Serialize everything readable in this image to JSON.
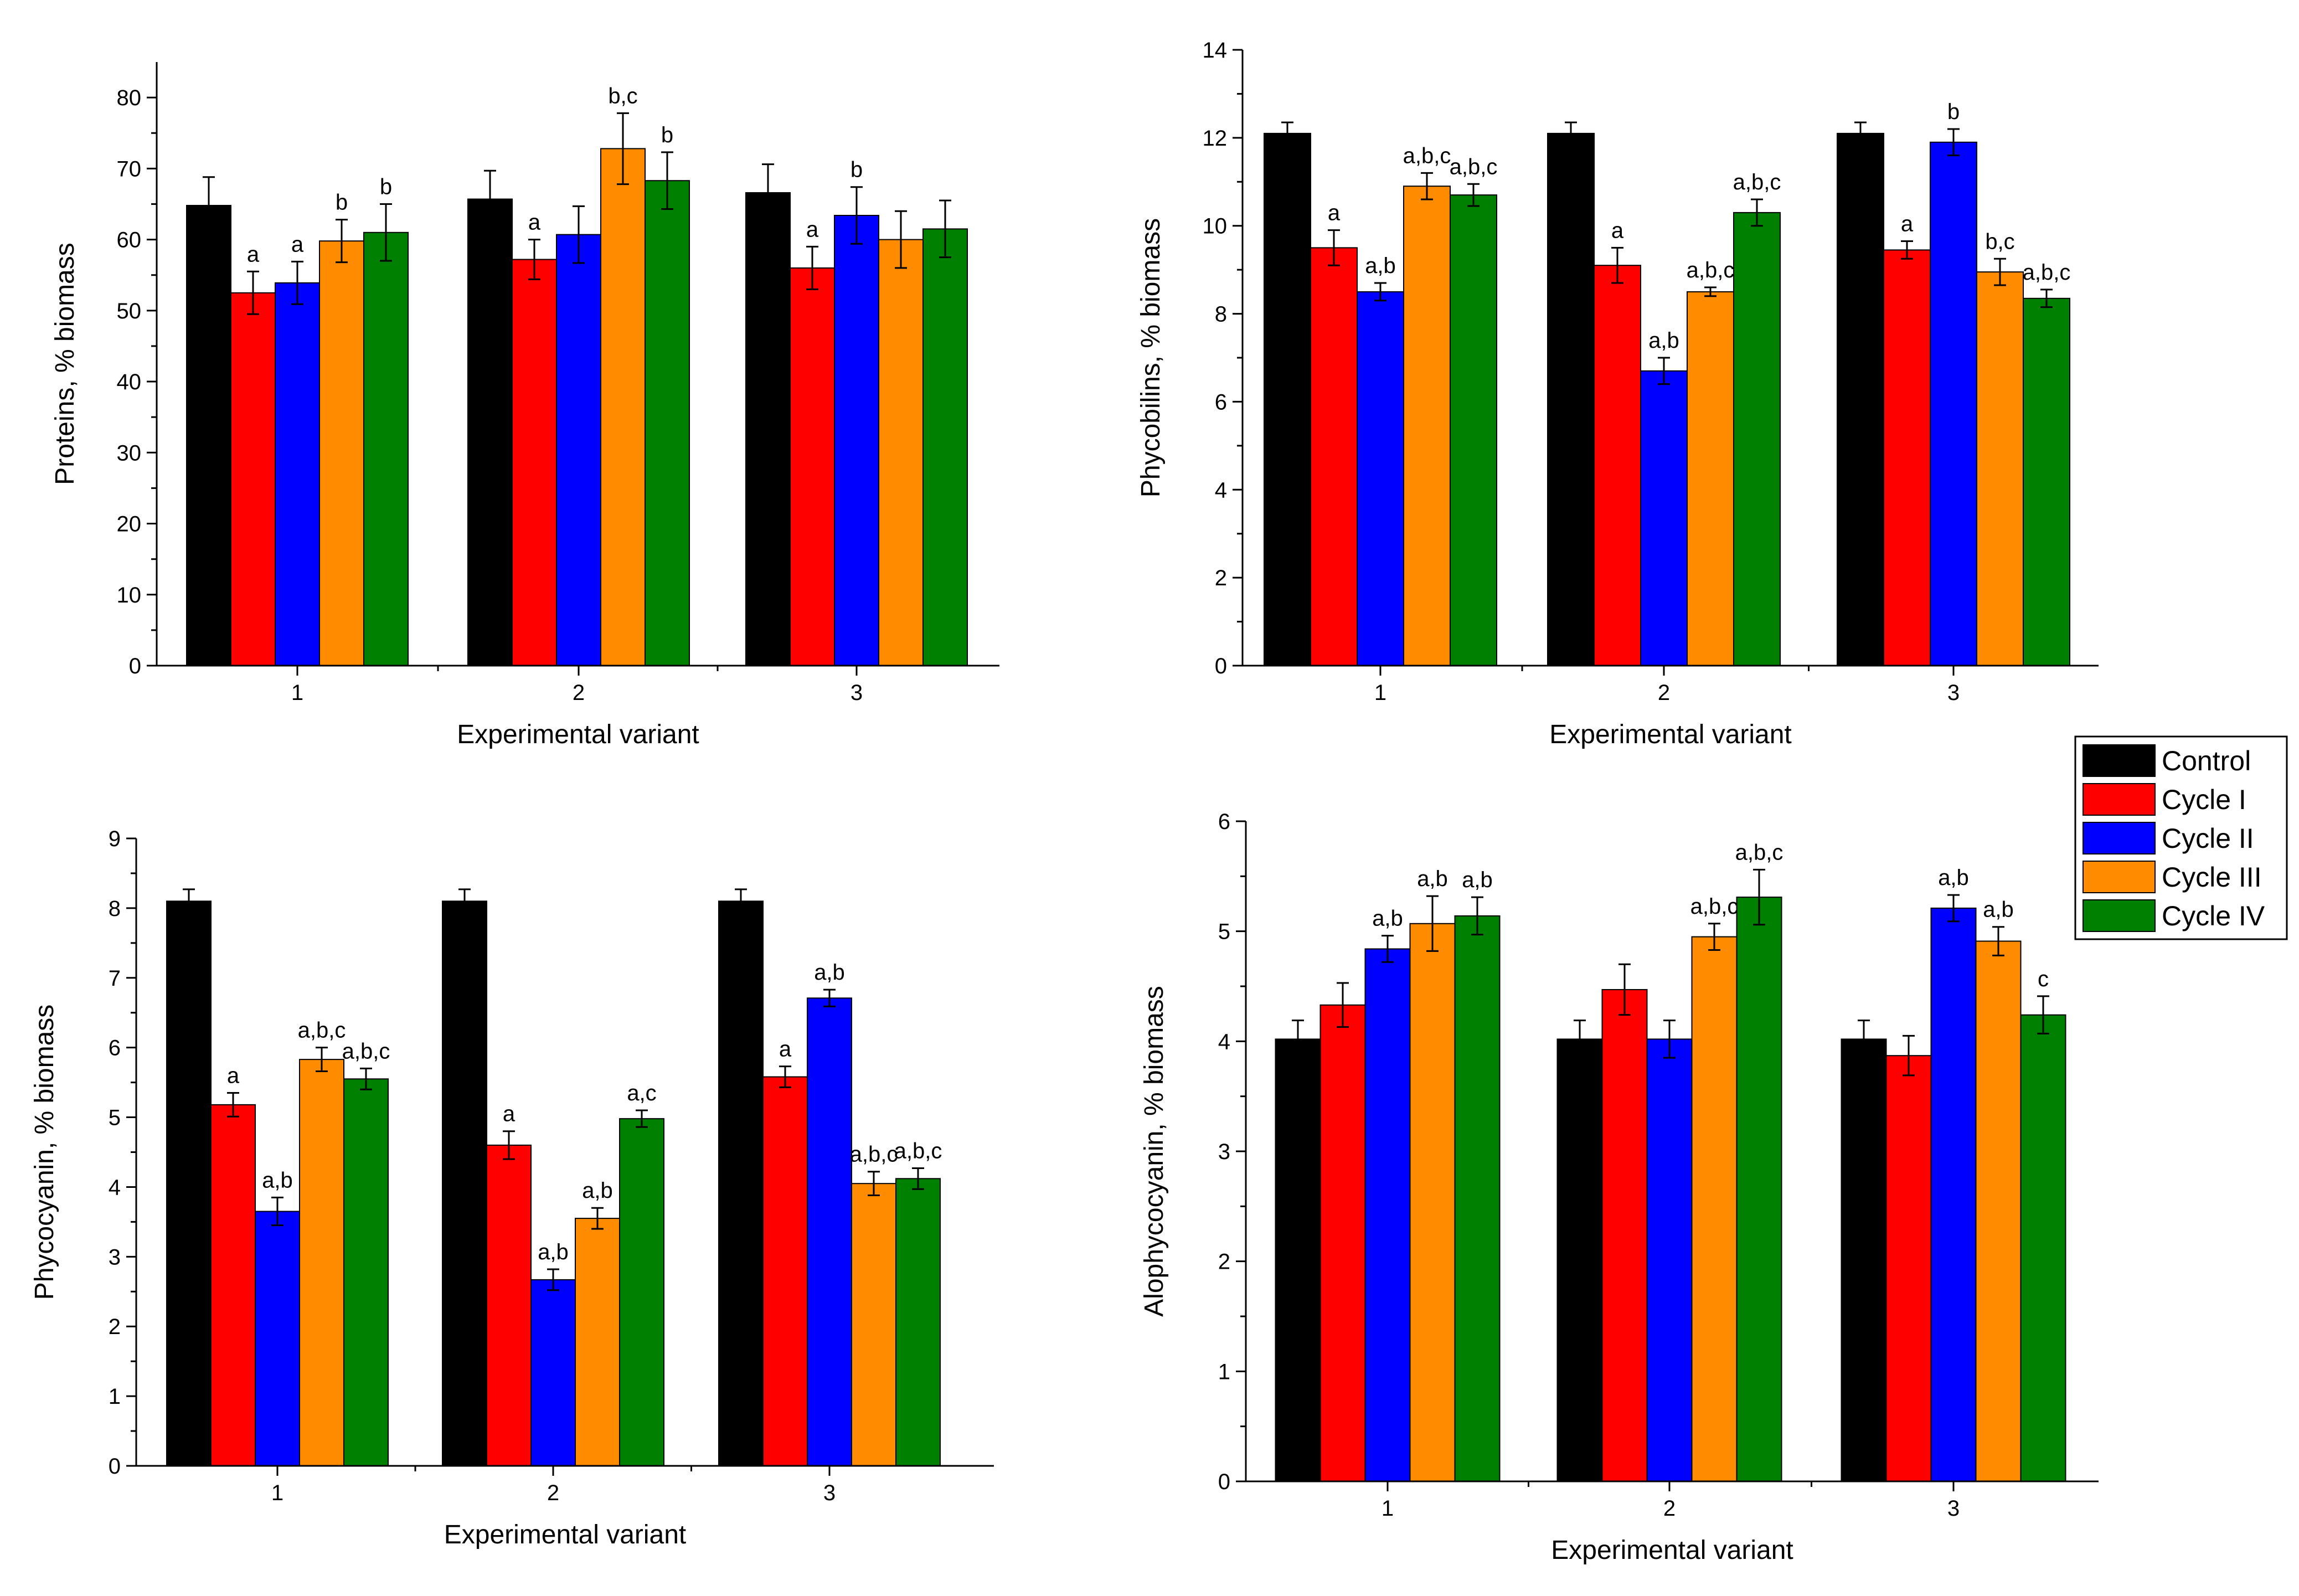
{
  "legend": [
    "Control",
    "Cycle I",
    "Cycle II",
    "Cycle III",
    "Cycle IV"
  ],
  "colors": {
    "Control": "#000000",
    "Cycle I": "#ff0000",
    "Cycle II": "#0000ff",
    "Cycle III": "#ff8c00",
    "Cycle IV": "#008000"
  },
  "chart_data": [
    {
      "type": "bar",
      "title": "",
      "xlabel": "Experimental variant",
      "ylabel": "Proteins, % biomass",
      "categories": [
        "1",
        "2",
        "3"
      ],
      "ylim": [
        0,
        85
      ],
      "yticks": [
        0,
        10,
        20,
        30,
        40,
        50,
        60,
        70,
        80
      ],
      "series": [
        {
          "name": "Control",
          "values": [
            64.8,
            65.7,
            66.6
          ],
          "errors": [
            4.0,
            4.0,
            4.0
          ],
          "labels": [
            "",
            "",
            ""
          ]
        },
        {
          "name": "Cycle I",
          "values": [
            52.5,
            57.2,
            56.0
          ],
          "errors": [
            3.0,
            2.8,
            3.0
          ],
          "labels": [
            "a",
            "a",
            "a"
          ]
        },
        {
          "name": "Cycle II",
          "values": [
            53.9,
            60.7,
            63.4
          ],
          "errors": [
            3.0,
            4.0,
            4.0
          ],
          "labels": [
            "a",
            "",
            "b"
          ]
        },
        {
          "name": "Cycle III",
          "values": [
            59.8,
            72.8,
            60.0
          ],
          "errors": [
            3.0,
            5.0,
            4.0
          ],
          "labels": [
            "b",
            "b,c",
            ""
          ]
        },
        {
          "name": "Cycle IV",
          "values": [
            61.0,
            68.3,
            61.5
          ],
          "errors": [
            4.0,
            4.0,
            4.0
          ],
          "labels": [
            "b",
            "b",
            ""
          ]
        }
      ]
    },
    {
      "type": "bar",
      "title": "",
      "xlabel": "Experimental variant",
      "ylabel": "Phycobilins, % biomass",
      "categories": [
        "1",
        "2",
        "3"
      ],
      "ylim": [
        0,
        14
      ],
      "yticks": [
        0,
        2,
        4,
        6,
        8,
        10,
        12,
        14
      ],
      "series": [
        {
          "name": "Control",
          "values": [
            12.1,
            12.1,
            12.1
          ],
          "errors": [
            0.25,
            0.25,
            0.25
          ],
          "labels": [
            "",
            "",
            ""
          ]
        },
        {
          "name": "Cycle I",
          "values": [
            9.5,
            9.1,
            9.45
          ],
          "errors": [
            0.4,
            0.4,
            0.2
          ],
          "labels": [
            "a",
            "a",
            "a"
          ]
        },
        {
          "name": "Cycle II",
          "values": [
            8.5,
            6.7,
            11.9
          ],
          "errors": [
            0.2,
            0.3,
            0.3
          ],
          "labels": [
            "a,b",
            "a,b",
            "b"
          ]
        },
        {
          "name": "Cycle III",
          "values": [
            10.9,
            8.5,
            8.95
          ],
          "errors": [
            0.3,
            0.1,
            0.3
          ],
          "labels": [
            "a,b,c",
            "a,b,c",
            "b,c"
          ]
        },
        {
          "name": "Cycle IV",
          "values": [
            10.7,
            10.3,
            8.35
          ],
          "errors": [
            0.25,
            0.3,
            0.2
          ],
          "labels": [
            "a,b,c",
            "a,b,c",
            "a,b,c"
          ]
        }
      ]
    },
    {
      "type": "bar",
      "title": "",
      "xlabel": "Experimental variant",
      "ylabel": "Phycocyanin, % biomass",
      "categories": [
        "1",
        "2",
        "3"
      ],
      "ylim": [
        0,
        9
      ],
      "yticks": [
        0,
        1,
        2,
        3,
        4,
        5,
        6,
        7,
        8,
        9
      ],
      "series": [
        {
          "name": "Control",
          "values": [
            8.1,
            8.1,
            8.1
          ],
          "errors": [
            0.17,
            0.17,
            0.17
          ],
          "labels": [
            "",
            "",
            ""
          ]
        },
        {
          "name": "Cycle I",
          "values": [
            5.18,
            4.6,
            5.58
          ],
          "errors": [
            0.17,
            0.2,
            0.15
          ],
          "labels": [
            "a",
            "a",
            "a"
          ]
        },
        {
          "name": "Cycle II",
          "values": [
            3.65,
            2.67,
            6.71
          ],
          "errors": [
            0.2,
            0.15,
            0.12
          ],
          "labels": [
            "a,b",
            "a,b",
            "a,b"
          ]
        },
        {
          "name": "Cycle III",
          "values": [
            5.83,
            3.55,
            4.05
          ],
          "errors": [
            0.17,
            0.15,
            0.17
          ],
          "labels": [
            "a,b,c",
            "a,b",
            "a,b,c"
          ]
        },
        {
          "name": "Cycle IV",
          "values": [
            5.55,
            4.98,
            4.12
          ],
          "errors": [
            0.15,
            0.12,
            0.15
          ],
          "labels": [
            "a,b,c",
            "a,c",
            "a,b,c"
          ]
        }
      ]
    },
    {
      "type": "bar",
      "title": "",
      "xlabel": "Experimental variant",
      "ylabel": "Alophycocyanin, % biomass",
      "categories": [
        "1",
        "2",
        "3"
      ],
      "ylim": [
        0,
        6
      ],
      "yticks": [
        0,
        1,
        2,
        3,
        4,
        5,
        6
      ],
      "series": [
        {
          "name": "Control",
          "values": [
            4.02,
            4.02,
            4.02
          ],
          "errors": [
            0.17,
            0.17,
            0.17
          ],
          "labels": [
            "",
            "",
            ""
          ]
        },
        {
          "name": "Cycle I",
          "values": [
            4.33,
            4.47,
            3.87
          ],
          "errors": [
            0.2,
            0.23,
            0.18
          ],
          "labels": [
            "",
            "",
            ""
          ]
        },
        {
          "name": "Cycle II",
          "values": [
            4.84,
            4.02,
            5.21
          ],
          "errors": [
            0.12,
            0.17,
            0.12
          ],
          "labels": [
            "a,b",
            "",
            "a,b"
          ]
        },
        {
          "name": "Cycle III",
          "values": [
            5.07,
            4.95,
            4.91
          ],
          "errors": [
            0.25,
            0.12,
            0.13
          ],
          "labels": [
            "a,b",
            "a,b,c",
            "a,b"
          ]
        },
        {
          "name": "Cycle IV",
          "values": [
            5.14,
            5.31,
            4.24
          ],
          "errors": [
            0.17,
            0.25,
            0.17
          ],
          "labels": [
            "a,b",
            "a,b,c",
            "c"
          ]
        }
      ]
    }
  ]
}
